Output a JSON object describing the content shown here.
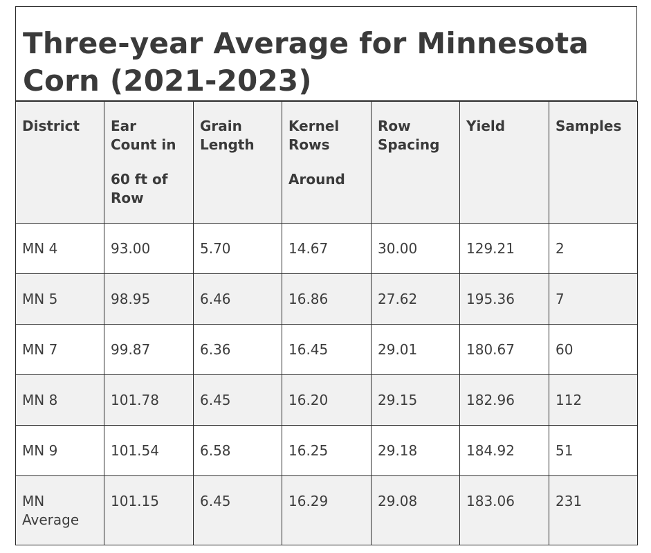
{
  "title": "Three-year Average for Minnesota Corn (2021-2023)",
  "headers": [
    {
      "lines": [
        "District"
      ]
    },
    {
      "lines": [
        "Ear",
        "Count in"
      ],
      "lines2": [
        "60 ft of",
        "Row"
      ]
    },
    {
      "lines": [
        "Grain",
        "Length"
      ]
    },
    {
      "lines": [
        "Kernel",
        "Rows"
      ],
      "lines2": [
        "Around"
      ]
    },
    {
      "lines": [
        "Row",
        "Spacing"
      ]
    },
    {
      "lines": [
        "Yield"
      ]
    },
    {
      "lines": [
        "Samples"
      ]
    }
  ],
  "rows": [
    [
      "MN 4",
      "93.00",
      "5.70",
      "14.67",
      "30.00",
      "129.21",
      "2"
    ],
    [
      "MN 5",
      "98.95",
      "6.46",
      "16.86",
      "27.62",
      "195.36",
      "7"
    ],
    [
      "MN 7",
      "99.87",
      "6.36",
      "16.45",
      "29.01",
      "180.67",
      "60"
    ],
    [
      "MN 8",
      "101.78",
      "6.45",
      "16.20",
      "29.15",
      "182.96",
      "112"
    ],
    [
      "MN 9",
      "101.54",
      "6.58",
      "16.25",
      "29.18",
      "184.92",
      "51"
    ],
    [
      "MN Average",
      "101.15",
      "6.45",
      "16.29",
      "29.08",
      "183.06",
      "231"
    ]
  ],
  "colors": {
    "border": "#2b2b2b",
    "header_bg": "#f1f1f1",
    "stripe_bg": "#f1f1f1",
    "text": "#3a3a3a"
  }
}
